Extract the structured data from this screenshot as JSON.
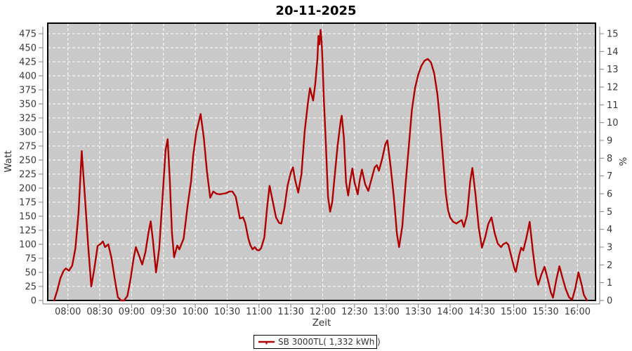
{
  "title": "20-11-2025",
  "colors": {
    "series_line": "#b00000",
    "plot_background": "#c9c9c9",
    "gridline": "#ffffff",
    "plot_border": "#000000",
    "axis_line": "#808080",
    "tick_label": "#3a3a3a",
    "title_color": "#000000",
    "legend_border": "#000000",
    "legend_background": "#ffffff"
  },
  "chart_data": {
    "type": "line",
    "title": "20-11-2025",
    "xlabel": "Zeit",
    "ylabel_left": "Watt",
    "ylabel_right": "%",
    "grid": true,
    "x_tick_labels": [
      "08:00",
      "08:30",
      "09:00",
      "09:30",
      "10:00",
      "10:30",
      "11:00",
      "11:30",
      "12:00",
      "12:30",
      "13:00",
      "13:30",
      "14:00",
      "14:30",
      "15:00",
      "15:30",
      "16:00"
    ],
    "y_left_ticks": [
      0,
      25,
      50,
      75,
      100,
      125,
      150,
      175,
      200,
      225,
      250,
      275,
      300,
      325,
      350,
      375,
      400,
      425,
      450,
      475
    ],
    "y_left_range": [
      0,
      493.75
    ],
    "y_right_ticks": [
      0,
      1,
      2,
      3,
      4,
      5,
      6,
      7,
      8,
      9,
      10,
      11,
      12,
      13,
      14,
      15
    ],
    "y_right_range": [
      0,
      15.6
    ],
    "legend_position": "bottom-center",
    "series": [
      {
        "name": "SB 3000TL( 1,332 kWh )",
        "color": "#b00000",
        "points": [
          [
            "07:47",
            0
          ],
          [
            "07:50",
            18
          ],
          [
            "07:53",
            40
          ],
          [
            "07:56",
            53
          ],
          [
            "07:58",
            57
          ],
          [
            "08:01",
            53
          ],
          [
            "08:04",
            62
          ],
          [
            "08:07",
            92
          ],
          [
            "08:10",
            155
          ],
          [
            "08:13",
            266
          ],
          [
            "08:16",
            185
          ],
          [
            "08:19",
            100
          ],
          [
            "08:22",
            25
          ],
          [
            "08:25",
            58
          ],
          [
            "08:28",
            97
          ],
          [
            "08:31",
            101
          ],
          [
            "08:33",
            105
          ],
          [
            "08:35",
            95
          ],
          [
            "08:38",
            100
          ],
          [
            "08:41",
            76
          ],
          [
            "08:44",
            40
          ],
          [
            "08:47",
            6
          ],
          [
            "08:50",
            0
          ],
          [
            "08:53",
            0
          ],
          [
            "08:56",
            8
          ],
          [
            "08:59",
            38
          ],
          [
            "09:02",
            76
          ],
          [
            "09:04",
            95
          ],
          [
            "09:07",
            80
          ],
          [
            "09:10",
            64
          ],
          [
            "09:13",
            86
          ],
          [
            "09:16",
            122
          ],
          [
            "09:18",
            141
          ],
          [
            "09:20",
            108
          ],
          [
            "09:23",
            50
          ],
          [
            "09:26",
            92
          ],
          [
            "09:29",
            180
          ],
          [
            "09:32",
            268
          ],
          [
            "09:34",
            287
          ],
          [
            "09:36",
            215
          ],
          [
            "09:38",
            120
          ],
          [
            "09:40",
            77
          ],
          [
            "09:43",
            98
          ],
          [
            "09:45",
            91
          ],
          [
            "09:49",
            110
          ],
          [
            "09:53",
            172
          ],
          [
            "09:56",
            212
          ],
          [
            "09:58",
            258
          ],
          [
            "10:01",
            300
          ],
          [
            "10:05",
            332
          ],
          [
            "10:08",
            290
          ],
          [
            "10:11",
            230
          ],
          [
            "10:14",
            183
          ],
          [
            "10:17",
            194
          ],
          [
            "10:20",
            190
          ],
          [
            "10:23",
            189
          ],
          [
            "10:26",
            190
          ],
          [
            "10:29",
            191
          ],
          [
            "10:32",
            194
          ],
          [
            "10:35",
            194
          ],
          [
            "10:38",
            185
          ],
          [
            "10:40",
            166
          ],
          [
            "10:42",
            146
          ],
          [
            "10:45",
            148
          ],
          [
            "10:47",
            138
          ],
          [
            "10:50",
            110
          ],
          [
            "10:52",
            98
          ],
          [
            "10:54",
            91
          ],
          [
            "10:56",
            95
          ],
          [
            "10:58",
            90
          ],
          [
            "11:00",
            89
          ],
          [
            "11:02",
            93
          ],
          [
            "11:05",
            112
          ],
          [
            "11:08",
            172
          ],
          [
            "11:10",
            204
          ],
          [
            "11:13",
            176
          ],
          [
            "11:16",
            148
          ],
          [
            "11:19",
            138
          ],
          [
            "11:21",
            137
          ],
          [
            "11:24",
            165
          ],
          [
            "11:27",
            205
          ],
          [
            "11:30",
            228
          ],
          [
            "11:32",
            237
          ],
          [
            "11:34",
            215
          ],
          [
            "11:37",
            192
          ],
          [
            "11:40",
            225
          ],
          [
            "11:43",
            300
          ],
          [
            "11:46",
            350
          ],
          [
            "11:48",
            378
          ],
          [
            "11:51",
            356
          ],
          [
            "11:53",
            385
          ],
          [
            "11:55",
            430
          ],
          [
            "11:56",
            471
          ],
          [
            "11:57",
            456
          ],
          [
            "11:58",
            482
          ],
          [
            "11:59",
            462
          ],
          [
            "12:00",
            420
          ],
          [
            "12:01",
            364
          ],
          [
            "12:03",
            280
          ],
          [
            "12:05",
            185
          ],
          [
            "12:07",
            158
          ],
          [
            "12:09",
            175
          ],
          [
            "12:11",
            215
          ],
          [
            "12:14",
            275
          ],
          [
            "12:17",
            320
          ],
          [
            "12:18",
            329
          ],
          [
            "12:20",
            290
          ],
          [
            "12:22",
            210
          ],
          [
            "12:24",
            187
          ],
          [
            "12:26",
            214
          ],
          [
            "12:28",
            235
          ],
          [
            "12:30",
            210
          ],
          [
            "12:33",
            189
          ],
          [
            "12:35",
            215
          ],
          [
            "12:37",
            233
          ],
          [
            "12:40",
            207
          ],
          [
            "12:43",
            195
          ],
          [
            "12:46",
            216
          ],
          [
            "12:49",
            237
          ],
          [
            "12:51",
            241
          ],
          [
            "12:53",
            231
          ],
          [
            "12:56",
            252
          ],
          [
            "12:59",
            278
          ],
          [
            "13:01",
            285
          ],
          [
            "13:04",
            238
          ],
          [
            "13:07",
            185
          ],
          [
            "13:10",
            118
          ],
          [
            "13:12",
            95
          ],
          [
            "13:15",
            132
          ],
          [
            "13:18",
            205
          ],
          [
            "13:21",
            272
          ],
          [
            "13:24",
            339
          ],
          [
            "13:27",
            378
          ],
          [
            "13:30",
            402
          ],
          [
            "13:33",
            418
          ],
          [
            "13:36",
            427
          ],
          [
            "13:39",
            430
          ],
          [
            "13:42",
            424
          ],
          [
            "13:45",
            405
          ],
          [
            "13:48",
            368
          ],
          [
            "13:50",
            330
          ],
          [
            "13:52",
            285
          ],
          [
            "13:54",
            238
          ],
          [
            "13:56",
            190
          ],
          [
            "13:58",
            162
          ],
          [
            "14:00",
            148
          ],
          [
            "14:03",
            140
          ],
          [
            "14:06",
            137
          ],
          [
            "14:09",
            141
          ],
          [
            "14:11",
            143
          ],
          [
            "14:13",
            131
          ],
          [
            "14:16",
            152
          ],
          [
            "14:19",
            212
          ],
          [
            "14:21",
            236
          ],
          [
            "14:24",
            188
          ],
          [
            "14:27",
            130
          ],
          [
            "14:30",
            94
          ],
          [
            "14:33",
            112
          ],
          [
            "14:36",
            136
          ],
          [
            "14:39",
            148
          ],
          [
            "14:42",
            120
          ],
          [
            "14:45",
            101
          ],
          [
            "14:48",
            95
          ],
          [
            "14:50",
            100
          ],
          [
            "14:53",
            103
          ],
          [
            "14:55",
            99
          ],
          [
            "14:58",
            76
          ],
          [
            "15:01",
            54
          ],
          [
            "15:02",
            51
          ],
          [
            "15:05",
            80
          ],
          [
            "15:07",
            94
          ],
          [
            "15:09",
            89
          ],
          [
            "15:12",
            112
          ],
          [
            "15:15",
            140
          ],
          [
            "15:18",
            88
          ],
          [
            "15:21",
            44
          ],
          [
            "15:23",
            28
          ],
          [
            "15:26",
            46
          ],
          [
            "15:29",
            60
          ],
          [
            "15:32",
            38
          ],
          [
            "15:35",
            14
          ],
          [
            "15:37",
            5
          ],
          [
            "15:40",
            36
          ],
          [
            "15:43",
            61
          ],
          [
            "15:46",
            40
          ],
          [
            "15:49",
            20
          ],
          [
            "15:52",
            6
          ],
          [
            "15:55",
            1
          ],
          [
            "15:58",
            22
          ],
          [
            "16:01",
            50
          ],
          [
            "16:04",
            28
          ],
          [
            "16:06",
            10
          ],
          [
            "16:09",
            0
          ]
        ]
      }
    ]
  },
  "legend": {
    "label": "SB 3000TL( 1,332 kWh )"
  }
}
